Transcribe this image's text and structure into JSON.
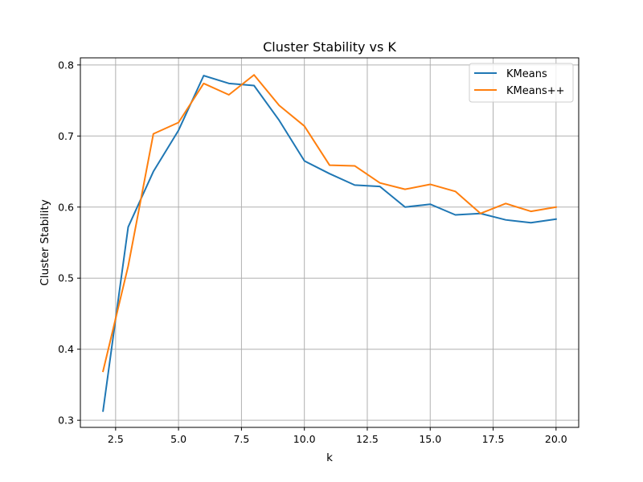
{
  "chart_data": {
    "type": "line",
    "title": "Cluster Stability vs K",
    "xlabel": "k",
    "ylabel": "Cluster Stability",
    "xlim": [
      1.1,
      20.9
    ],
    "ylim": [
      0.29,
      0.81
    ],
    "xticks": [
      2.5,
      5.0,
      7.5,
      10.0,
      12.5,
      15.0,
      17.5,
      20.0
    ],
    "xtick_labels": [
      "2.5",
      "5.0",
      "7.5",
      "10.0",
      "12.5",
      "15.0",
      "17.5",
      "20.0"
    ],
    "yticks": [
      0.3,
      0.4,
      0.5,
      0.6,
      0.7,
      0.8
    ],
    "ytick_labels": [
      "0.3",
      "0.4",
      "0.5",
      "0.6",
      "0.7",
      "0.8"
    ],
    "grid": true,
    "legend_position": "top-right",
    "x": [
      2,
      3,
      4,
      5,
      6,
      7,
      8,
      9,
      10,
      11,
      12,
      13,
      14,
      15,
      16,
      17,
      18,
      19,
      20
    ],
    "series": [
      {
        "name": "KMeans",
        "color": "#1f77b4",
        "values": [
          0.313,
          0.572,
          0.65,
          0.708,
          0.785,
          0.774,
          0.771,
          0.722,
          0.665,
          0.647,
          0.631,
          0.629,
          0.6,
          0.604,
          0.589,
          0.591,
          0.582,
          0.578,
          0.583
        ]
      },
      {
        "name": "KMeans++",
        "color": "#ff7f0e",
        "values": [
          0.369,
          0.517,
          0.703,
          0.719,
          0.774,
          0.758,
          0.786,
          0.743,
          0.714,
          0.659,
          0.658,
          0.634,
          0.625,
          0.632,
          0.622,
          0.591,
          0.605,
          0.594,
          0.6
        ]
      }
    ]
  }
}
